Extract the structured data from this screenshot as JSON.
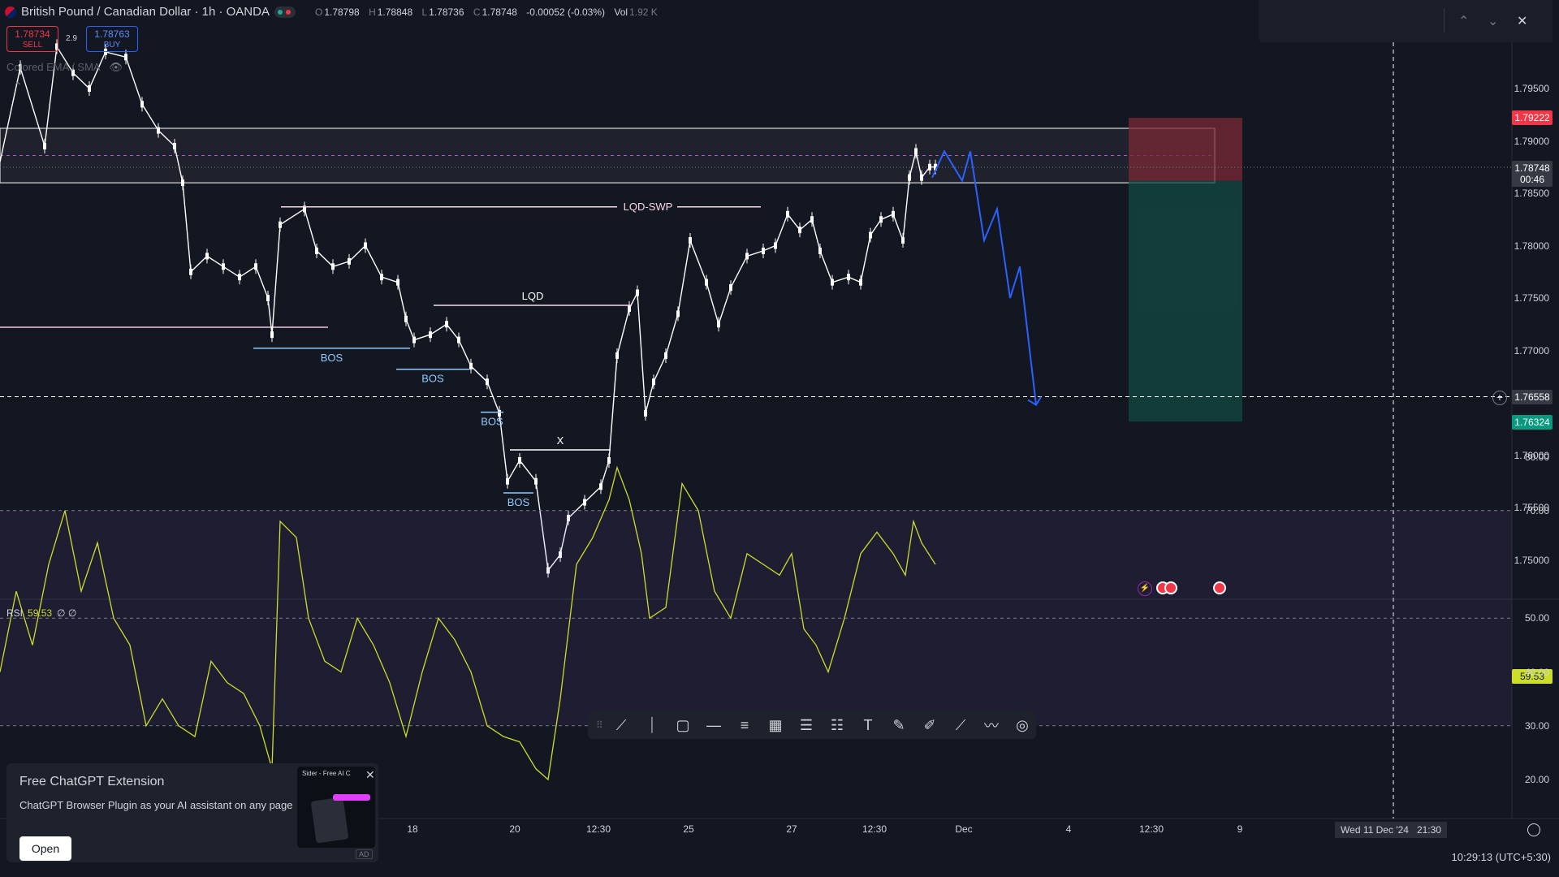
{
  "symbol": {
    "title": "British Pound / Canadian Dollar · 1h · OANDA",
    "ohlc": {
      "o_label": "O",
      "o": "1.78798",
      "h_label": "H",
      "h": "1.78848",
      "l_label": "L",
      "l": "1.78736",
      "c_label": "C",
      "c": "1.78748",
      "change": "-0.00052 (-0.03%)",
      "vol_label": "Vol",
      "vol": "1.92 K"
    }
  },
  "trade": {
    "sell_price": "1.78734",
    "sell_label": "SELL",
    "spread": "2.9",
    "buy_price": "1.78763",
    "buy_label": "BUY"
  },
  "indicator": {
    "label": "Colored EMA / SMA"
  },
  "price_axis": {
    "ticks": [
      "1.79500",
      "1.79000",
      "1.78500",
      "1.78000",
      "1.77500",
      "1.77000",
      "1.76000",
      "1.75500",
      "1.75000"
    ],
    "tags": {
      "stop": "1.79222",
      "current": "1.78748",
      "countdown": "00:46",
      "crosshair": "1.76558",
      "target": "1.76324"
    }
  },
  "chart_data": {
    "type": "candlestick",
    "title": "British Pound / Canadian Dollar · 1h · OANDA",
    "x_ticks": [
      "18",
      "20",
      "12:30",
      "25",
      "27",
      "12:30",
      "Dec",
      "4",
      "12:30",
      "9"
    ],
    "y_ticks": [
      1.795,
      1.79,
      1.785,
      1.78,
      1.775,
      1.77,
      1.76,
      1.755,
      1.75
    ],
    "close_path": [
      [
        0,
        1.788
      ],
      [
        25,
        1.797
      ],
      [
        55,
        1.7895
      ],
      [
        70,
        1.799
      ],
      [
        90,
        1.7965
      ],
      [
        110,
        1.795
      ],
      [
        130,
        1.7985
      ],
      [
        155,
        1.798
      ],
      [
        175,
        1.7935
      ],
      [
        195,
        1.791
      ],
      [
        215,
        1.7895
      ],
      [
        225,
        1.786
      ],
      [
        235,
        1.7775
      ],
      [
        255,
        1.779
      ],
      [
        275,
        1.778
      ],
      [
        295,
        1.777
      ],
      [
        315,
        1.778
      ],
      [
        330,
        1.775
      ],
      [
        335,
        1.7715
      ],
      [
        345,
        1.782
      ],
      [
        375,
        1.7835
      ],
      [
        390,
        1.7795
      ],
      [
        410,
        1.778
      ],
      [
        430,
        1.7785
      ],
      [
        450,
        1.78
      ],
      [
        470,
        1.777
      ],
      [
        490,
        1.7765
      ],
      [
        500,
        1.773
      ],
      [
        510,
        1.771
      ],
      [
        530,
        1.7715
      ],
      [
        550,
        1.7725
      ],
      [
        565,
        1.771
      ],
      [
        580,
        1.7685
      ],
      [
        600,
        1.767
      ],
      [
        615,
        1.764
      ],
      [
        625,
        1.7575
      ],
      [
        640,
        1.7595
      ],
      [
        660,
        1.7575
      ],
      [
        675,
        1.749
      ],
      [
        690,
        1.7505
      ],
      [
        700,
        1.754
      ],
      [
        720,
        1.7555
      ],
      [
        740,
        1.757
      ],
      [
        750,
        1.7595
      ],
      [
        760,
        1.7695
      ],
      [
        775,
        1.774
      ],
      [
        785,
        1.7755
      ],
      [
        795,
        1.764
      ],
      [
        805,
        1.767
      ],
      [
        820,
        1.7695
      ],
      [
        835,
        1.7735
      ],
      [
        850,
        1.7805
      ],
      [
        870,
        1.7765
      ],
      [
        885,
        1.7725
      ],
      [
        900,
        1.776
      ],
      [
        920,
        1.779
      ],
      [
        940,
        1.7795
      ],
      [
        955,
        1.78
      ],
      [
        970,
        1.783
      ],
      [
        985,
        1.7815
      ],
      [
        1000,
        1.7825
      ],
      [
        1010,
        1.7795
      ],
      [
        1025,
        1.7765
      ],
      [
        1045,
        1.777
      ],
      [
        1060,
        1.7765
      ],
      [
        1072,
        1.781
      ],
      [
        1085,
        1.7825
      ],
      [
        1100,
        1.783
      ],
      [
        1112,
        1.7805
      ],
      [
        1120,
        1.7865
      ],
      [
        1128,
        1.789
      ],
      [
        1135,
        1.7865
      ],
      [
        1145,
        1.7875
      ],
      [
        1152,
        1.7875
      ]
    ],
    "forecast_path": [
      [
        1148,
        1.7865
      ],
      [
        1163,
        1.789
      ],
      [
        1185,
        1.7862
      ],
      [
        1195,
        1.789
      ],
      [
        1212,
        1.7805
      ],
      [
        1228,
        1.7835
      ],
      [
        1244,
        1.775
      ],
      [
        1256,
        1.778
      ],
      [
        1276,
        1.7648
      ]
    ],
    "position": {
      "entry": 1.7862,
      "stop": 1.7922,
      "target": 1.7632
    },
    "zones": [
      {
        "top": 1.7912,
        "bottom": 1.786
      }
    ],
    "annotations": [
      {
        "text": "LQD-SWP",
        "price": 1.7837,
        "x1": 346,
        "x2": 937
      },
      {
        "text": "LQD",
        "price": 1.7743,
        "x1": 534,
        "x2": 778
      },
      {
        "text": "X",
        "price": 1.7605,
        "x1": 628,
        "x2": 752
      },
      {
        "text": "BOS",
        "price": 1.7702,
        "x1": 312,
        "x2": 505
      },
      {
        "text": "BOS",
        "price": 1.7682,
        "x1": 488,
        "x2": 578
      },
      {
        "text": "BOS",
        "price": 1.7641,
        "x1": 592,
        "x2": 620
      },
      {
        "text": "BOS",
        "price": 1.7564,
        "x1": 620,
        "x2": 657
      }
    ],
    "rsi": {
      "value": "59.53",
      "levels": [
        70,
        50,
        30
      ],
      "ticks": [
        "80.00",
        "70.00",
        "50.00",
        "40.00",
        "30.00",
        "20.00"
      ],
      "path": [
        [
          0,
          40
        ],
        [
          20,
          55
        ],
        [
          40,
          45
        ],
        [
          60,
          60
        ],
        [
          80,
          70
        ],
        [
          100,
          55
        ],
        [
          120,
          64
        ],
        [
          140,
          50
        ],
        [
          160,
          45
        ],
        [
          180,
          30
        ],
        [
          200,
          35
        ],
        [
          220,
          30
        ],
        [
          240,
          28
        ],
        [
          260,
          42
        ],
        [
          280,
          38
        ],
        [
          300,
          36
        ],
        [
          320,
          30
        ],
        [
          335,
          22
        ],
        [
          345,
          68
        ],
        [
          365,
          65
        ],
        [
          380,
          50
        ],
        [
          400,
          42
        ],
        [
          420,
          40
        ],
        [
          440,
          50
        ],
        [
          460,
          45
        ],
        [
          480,
          38
        ],
        [
          500,
          28
        ],
        [
          520,
          40
        ],
        [
          540,
          50
        ],
        [
          560,
          46
        ],
        [
          580,
          40
        ],
        [
          600,
          30
        ],
        [
          620,
          28
        ],
        [
          640,
          27
        ],
        [
          660,
          22
        ],
        [
          675,
          20
        ],
        [
          690,
          35
        ],
        [
          710,
          60
        ],
        [
          730,
          65
        ],
        [
          750,
          72
        ],
        [
          760,
          78
        ],
        [
          775,
          72
        ],
        [
          790,
          62
        ],
        [
          800,
          50
        ],
        [
          820,
          52
        ],
        [
          840,
          75
        ],
        [
          860,
          70
        ],
        [
          880,
          55
        ],
        [
          900,
          50
        ],
        [
          920,
          62
        ],
        [
          940,
          60
        ],
        [
          960,
          58
        ],
        [
          975,
          62
        ],
        [
          990,
          48
        ],
        [
          1005,
          45
        ],
        [
          1020,
          40
        ],
        [
          1040,
          50
        ],
        [
          1060,
          62
        ],
        [
          1080,
          66
        ],
        [
          1100,
          62
        ],
        [
          1115,
          58
        ],
        [
          1125,
          68
        ],
        [
          1135,
          64
        ],
        [
          1152,
          60
        ]
      ]
    }
  },
  "toolbar": {
    "tools": [
      "trend-line",
      "vertical-line",
      "rectangle",
      "horizontal-line",
      "parallel-channel",
      "grid",
      "fib-retracement",
      "fib-channel",
      "text",
      "brush",
      "highlighter",
      "ray",
      "path",
      "circle"
    ]
  },
  "popup": {
    "title": "Free ChatGPT Extension",
    "desc": "ChatGPT Browser Plugin as your AI assistant on any page",
    "open_label": "Open",
    "ad_label": "AD",
    "thumb_title": "Sider - Free AI C"
  },
  "time_axis": {
    "date_box": "Wed 11 Dec '24",
    "time_box": "21:30"
  },
  "status": {
    "clock": "10:29:13 (UTC+5:30)"
  },
  "colors": {
    "bg": "#131722",
    "up": "#ffffff",
    "down": "#ffffff",
    "rsi": "#ccdd2a",
    "forecast": "#2962ff",
    "stop_zone": "#7a2a35",
    "target_zone": "#124a43"
  }
}
